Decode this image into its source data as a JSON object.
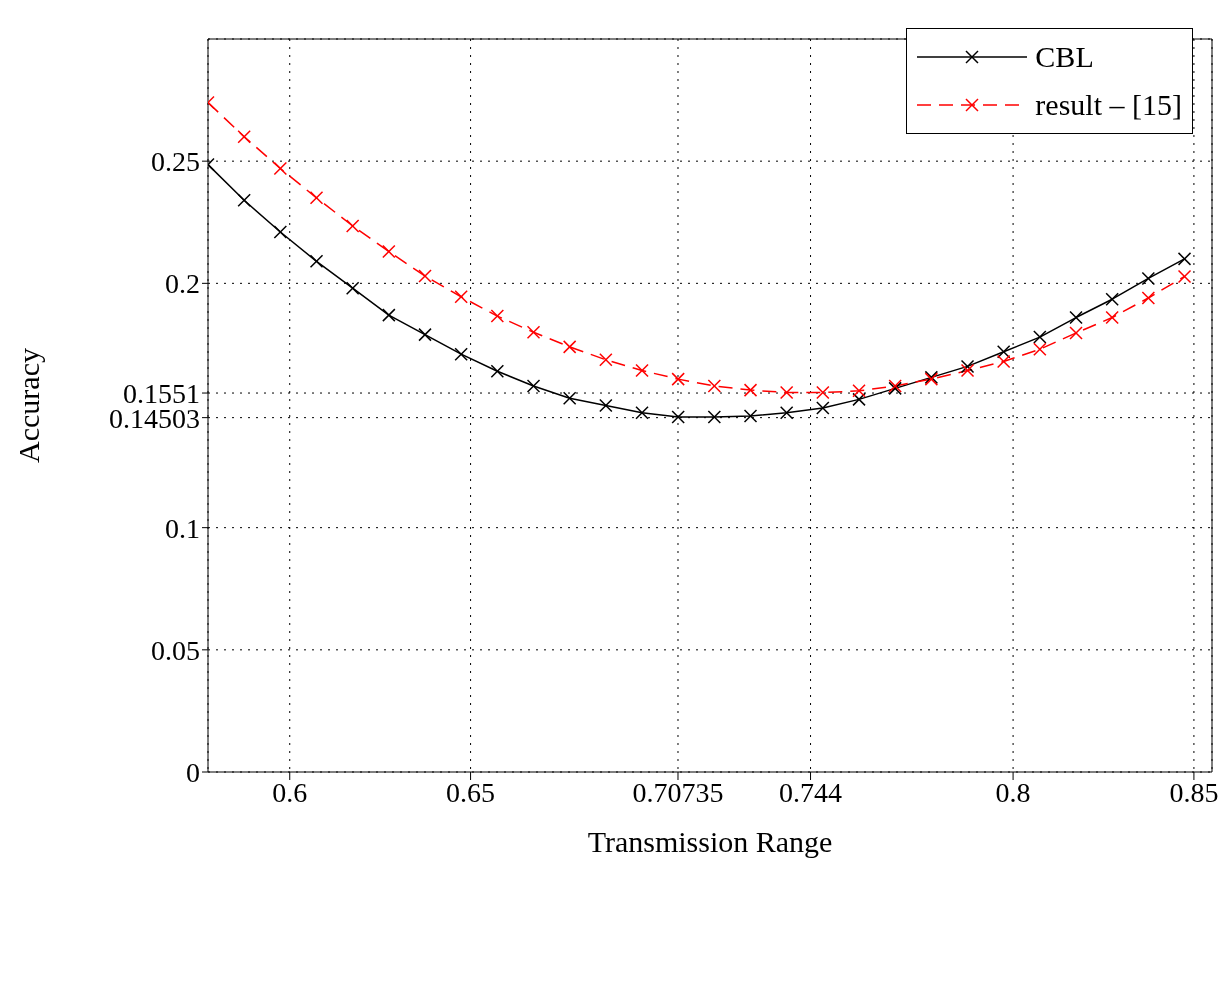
{
  "chart_data": {
    "type": "line",
    "xlabel": "Transmission Range",
    "ylabel": "Accuracy",
    "xlim": [
      0.5774,
      0.855
    ],
    "xticks": [
      0.6,
      0.65,
      0.70735,
      0.744,
      0.8,
      0.85
    ],
    "ylim": [
      0,
      0.3
    ],
    "yticks": [
      0,
      0.05,
      0.1,
      0.14503,
      0.1551,
      0.2,
      0.25
    ],
    "x": [
      0.5774,
      0.5874,
      0.5974,
      0.6074,
      0.6174,
      0.6274,
      0.6374,
      0.6474,
      0.6574,
      0.6674,
      0.6774,
      0.6874,
      0.6974,
      0.7074,
      0.7174,
      0.7274,
      0.7374,
      0.7474,
      0.7574,
      0.7674,
      0.7774,
      0.7874,
      0.7974,
      0.8074,
      0.8174,
      0.8274,
      0.8374,
      0.8474
    ],
    "series": [
      {
        "name": "CBL",
        "color": "#000000",
        "line_style": "solid",
        "values": [
          0.2486,
          0.234,
          0.221,
          0.209,
          0.198,
          0.187,
          0.179,
          0.171,
          0.164,
          0.158,
          0.153,
          0.15,
          0.147,
          0.1453,
          0.1453,
          0.1457,
          0.147,
          0.149,
          0.1525,
          0.157,
          0.1615,
          0.166,
          0.172,
          0.178,
          0.186,
          0.1935,
          0.202,
          0.21
        ]
      },
      {
        "name": "result – [15]",
        "color": "#ff0000",
        "line_style": "dashed",
        "values": [
          0.274,
          0.26,
          0.247,
          0.235,
          0.2235,
          0.213,
          0.203,
          0.1945,
          0.1866,
          0.18,
          0.174,
          0.1687,
          0.1643,
          0.1608,
          0.158,
          0.1563,
          0.1553,
          0.1553,
          0.156,
          0.158,
          0.1608,
          0.1643,
          0.168,
          0.173,
          0.1797,
          0.186,
          0.194,
          0.2028
        ]
      }
    ],
    "marker": "cross",
    "grid": true,
    "legend": "top right"
  }
}
